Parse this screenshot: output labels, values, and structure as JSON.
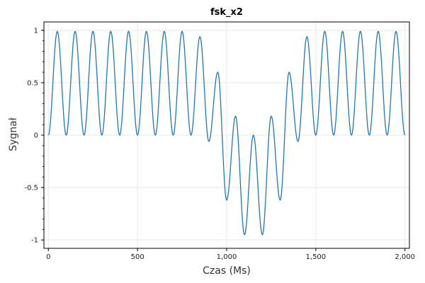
{
  "chart_data": {
    "type": "line",
    "title": "fsk_x2",
    "xlabel": "Czas (Ms)",
    "ylabel": "Sygnał",
    "xlim": [
      -25,
      2025
    ],
    "ylim": [
      -1.08,
      1.08
    ],
    "x_ticks": [
      0,
      500,
      1000,
      1500,
      2000
    ],
    "x_tick_labels": [
      "0",
      "500",
      "1,000",
      "1,500",
      "2,000"
    ],
    "y_ticks": [
      -1,
      -0.5,
      0,
      0.5,
      1
    ],
    "y_tick_labels": [
      "-1",
      "-0.5",
      "0",
      "0.5",
      "1"
    ],
    "grid": true,
    "legend": "none",
    "colors": {
      "line": "#1f77b4",
      "grid": "#e8e8e8",
      "axis": "#000000"
    },
    "series": [
      {
        "values_description": "",
        "x": [
          0,
          50,
          100,
          150,
          200,
          250,
          300,
          350,
          400,
          450,
          500,
          550,
          600,
          650,
          700,
          750,
          800,
          850,
          900,
          950,
          1000,
          1050,
          1100,
          1150,
          1200,
          1250,
          1300,
          1350,
          1400,
          1450,
          1500,
          1550,
          1600,
          1650,
          1700,
          1750,
          1800,
          1850,
          1900,
          1950,
          2000
        ],
        "y": [
          0,
          0.99,
          0,
          0.99,
          0,
          0.99,
          0,
          0.99,
          0,
          0.99,
          0,
          0.99,
          0,
          0.99,
          0,
          0.99,
          0,
          0.94,
          -0.06,
          0.6,
          -0.62,
          0.18,
          -0.95,
          0,
          -0.95,
          0.18,
          -0.62,
          0.6,
          -0.06,
          0.94,
          0,
          0.99,
          0,
          0.99,
          0,
          0.99,
          0,
          0.99,
          0,
          0.99,
          0
        ]
      }
    ]
  }
}
